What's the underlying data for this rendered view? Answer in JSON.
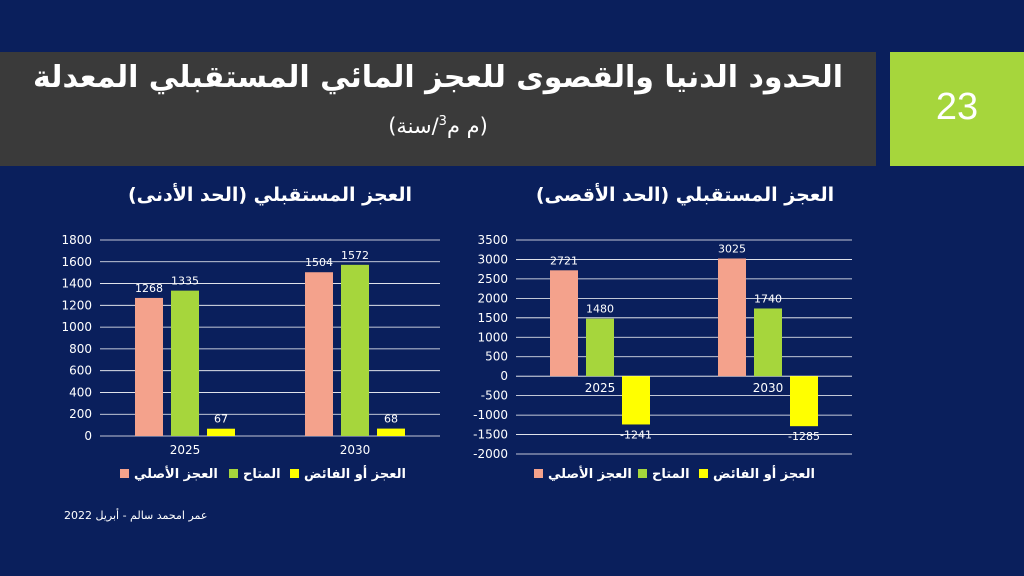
{
  "slide": {
    "title": "الحدود الدنيا والقصوى للعجز المائي المستقبلي المعدلة",
    "subtitle_prefix": "(م م",
    "subtitle_sup": "3",
    "subtitle_suffix": "/سنة)",
    "number": "23",
    "footer": "عمر امحمد سالم - أبريل 2022"
  },
  "colors": {
    "background": "#0a1f5c",
    "title_band": "#3a3a3a",
    "slide_number_box": "#a6d63c",
    "series_original": "#f4a28c",
    "series_available": "#a6d63c",
    "series_deficit": "#ffff00"
  },
  "chart_data": [
    {
      "type": "bar",
      "title": "العجز المستقبلي (الحد الأدنى)",
      "categories": [
        "2025",
        "2030"
      ],
      "series": [
        {
          "name": "العجز الأصلي",
          "values": [
            1268,
            1504
          ]
        },
        {
          "name": "المتاح",
          "values": [
            1335,
            1572
          ]
        },
        {
          "name": "العجز أو الفائض",
          "values": [
            67,
            68
          ]
        }
      ],
      "ylim": [
        0,
        1800
      ],
      "yticks": [
        0,
        200,
        400,
        600,
        800,
        1000,
        1200,
        1400,
        1600,
        1800
      ],
      "grid": true,
      "legend": "bottom"
    },
    {
      "type": "bar",
      "title": "العجز المستقبلي (الحد الأقصى)",
      "categories": [
        "2025",
        "2030"
      ],
      "series": [
        {
          "name": "العجز الأصلي",
          "values": [
            2721,
            3025
          ]
        },
        {
          "name": "المتاح",
          "values": [
            1480,
            1740
          ]
        },
        {
          "name": "العجز أو الفائض",
          "values": [
            -1241,
            -1285
          ]
        }
      ],
      "ylim": [
        -2000,
        3500
      ],
      "yticks": [
        -2000,
        -1500,
        -1000,
        -500,
        0,
        500,
        1000,
        1500,
        2000,
        2500,
        3000,
        3500
      ],
      "grid": true,
      "legend": "bottom"
    }
  ]
}
